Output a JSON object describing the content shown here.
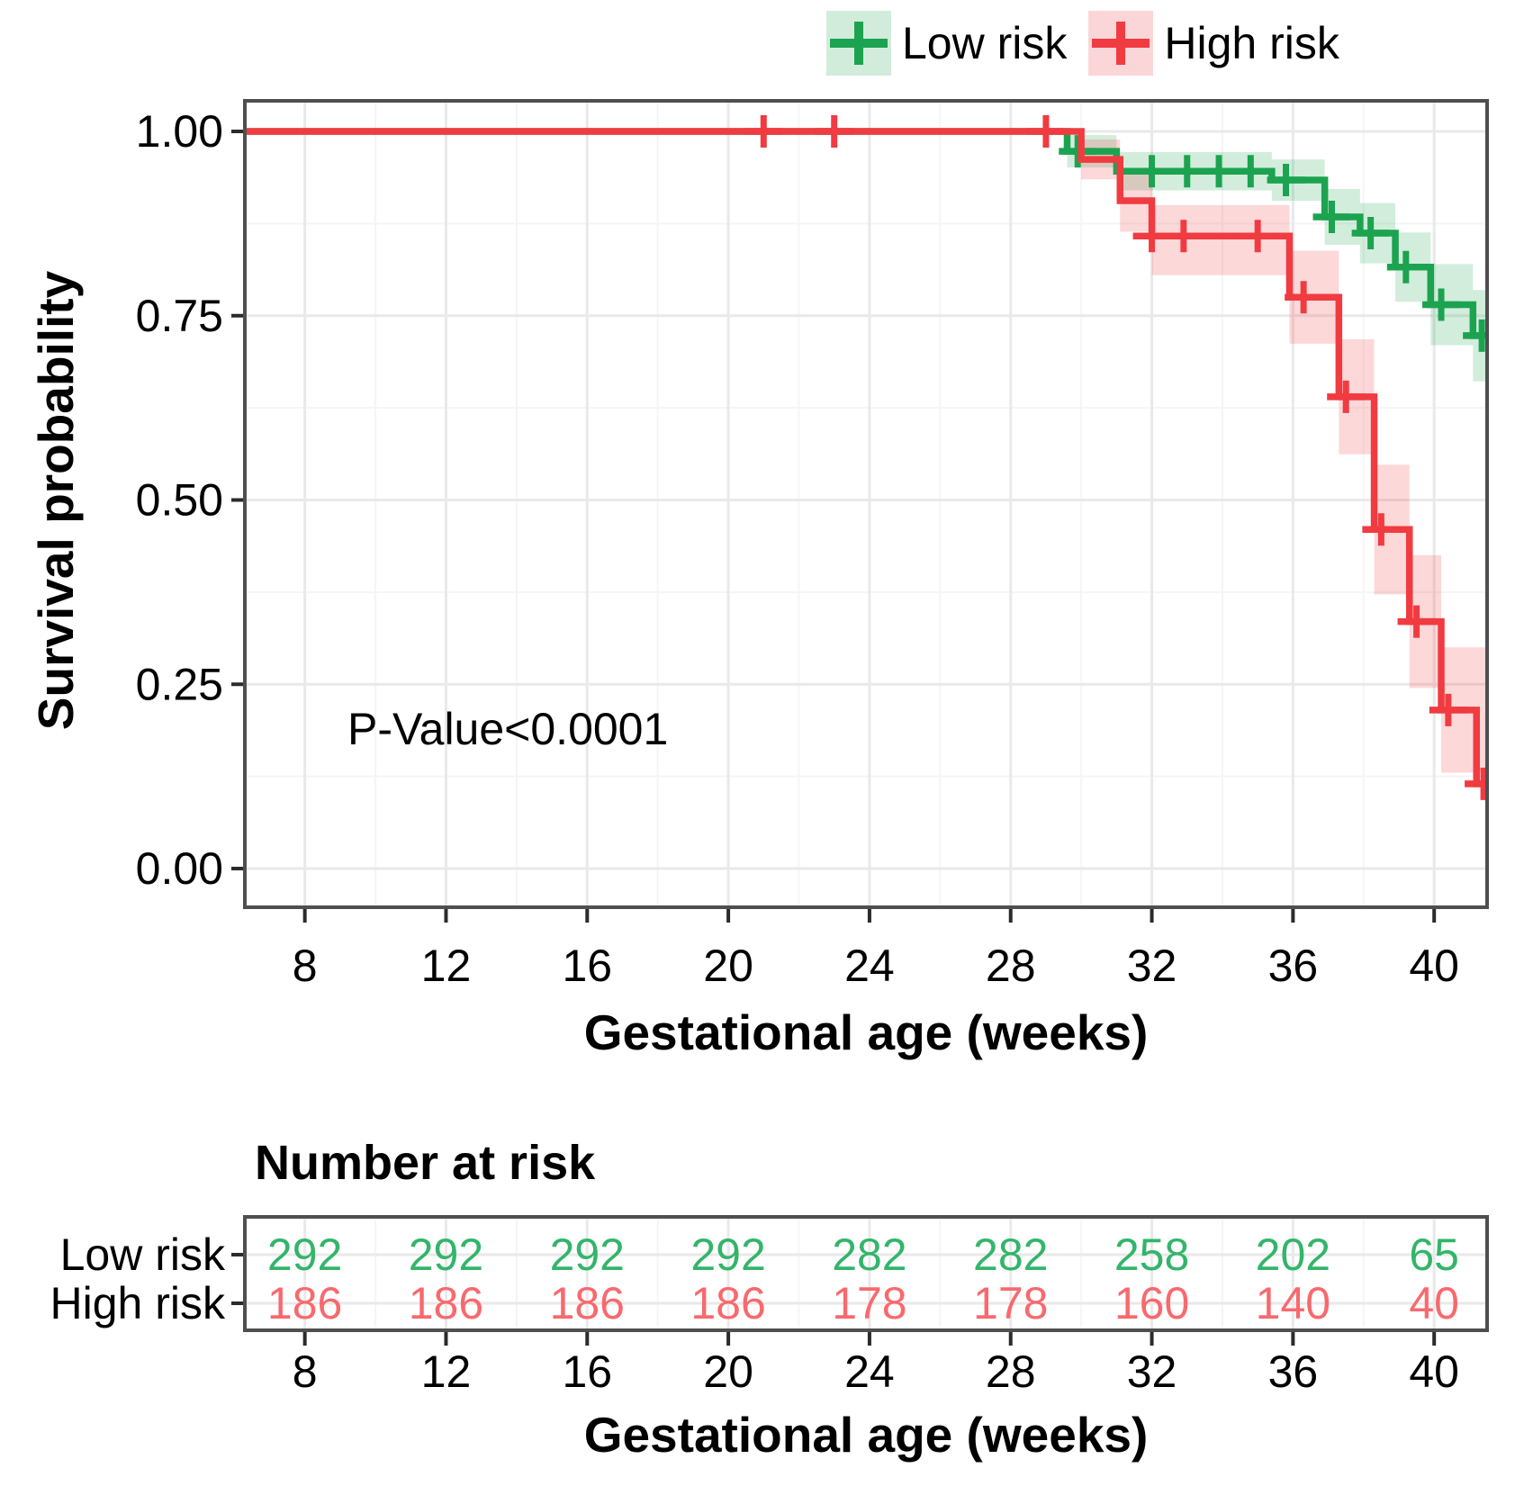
{
  "figure": {
    "background": "#ffffff",
    "legend": {
      "items": [
        {
          "label": "Low risk",
          "color": "#1CA350",
          "fill": "#D2ECDB"
        },
        {
          "label": "High risk",
          "color": "#F03B41",
          "fill": "#FBD6D8"
        }
      ]
    },
    "annotation": {
      "text": "P-Value<0.0001",
      "week": 9.2,
      "survival": 0.19
    }
  },
  "chart_data": [
    {
      "type": "line",
      "subtype": "kaplan-meier-step",
      "title": "",
      "xlabel": "Gestational age (weeks)",
      "ylabel": "Survival probability",
      "xlim": [
        6.3,
        41.5
      ],
      "ylim": [
        -0.05,
        1.04
      ],
      "xticks": [
        8,
        12,
        16,
        20,
        24,
        28,
        32,
        36,
        40
      ],
      "yticks": [
        1.0,
        0.75,
        0.5,
        0.25,
        0.0
      ],
      "ytick_labels": [
        "1.00",
        "0.75",
        "0.50",
        "0.25",
        "0.00"
      ],
      "grid": "major+minor",
      "legend_position": "top-right",
      "series": [
        {
          "name": "Low risk",
          "color": "#1CA350",
          "band_opacity": 0.2,
          "steps": [
            [
              6.3,
              1.0
            ],
            [
              29.6,
              0.973
            ],
            [
              31.0,
              0.946
            ],
            [
              35.4,
              0.934
            ],
            [
              36.9,
              0.884
            ],
            [
              37.9,
              0.862
            ],
            [
              38.9,
              0.816
            ],
            [
              39.9,
              0.765
            ],
            [
              41.1,
              0.723
            ],
            [
              41.5,
              0.723
            ]
          ],
          "censors": [
            [
              29.9,
              0.973
            ],
            [
              32.0,
              0.946
            ],
            [
              33.0,
              0.946
            ],
            [
              33.9,
              0.946
            ],
            [
              34.8,
              0.946
            ],
            [
              35.8,
              0.934
            ],
            [
              37.1,
              0.884
            ],
            [
              38.2,
              0.862
            ],
            [
              39.2,
              0.816
            ],
            [
              40.2,
              0.765
            ],
            [
              41.35,
              0.723
            ]
          ],
          "band": [
            [
              29.6,
              0.995,
              0.951
            ],
            [
              31.0,
              0.972,
              0.92
            ],
            [
              35.4,
              0.962,
              0.906
            ],
            [
              36.9,
              0.922,
              0.846
            ],
            [
              37.9,
              0.903,
              0.821
            ],
            [
              38.9,
              0.863,
              0.769
            ],
            [
              39.9,
              0.82,
              0.71
            ],
            [
              41.1,
              0.785,
              0.661
            ],
            [
              41.5,
              0.785,
              0.661
            ]
          ]
        },
        {
          "name": "High risk",
          "color": "#F03B41",
          "band_opacity": 0.2,
          "steps": [
            [
              6.3,
              1.0
            ],
            [
              30.0,
              0.962
            ],
            [
              31.1,
              0.906
            ],
            [
              32.0,
              0.858
            ],
            [
              35.9,
              0.775
            ],
            [
              37.3,
              0.64
            ],
            [
              38.3,
              0.46
            ],
            [
              39.3,
              0.335
            ],
            [
              40.2,
              0.215
            ],
            [
              41.2,
              0.115
            ],
            [
              41.45,
              0.115
            ]
          ],
          "censors": [
            [
              21.0,
              1.0
            ],
            [
              23.0,
              1.0
            ],
            [
              29.0,
              1.0
            ],
            [
              32.0,
              0.858
            ],
            [
              32.9,
              0.858
            ],
            [
              35.0,
              0.858
            ],
            [
              36.3,
              0.775
            ],
            [
              37.5,
              0.64
            ],
            [
              38.5,
              0.46
            ],
            [
              39.5,
              0.335
            ],
            [
              40.4,
              0.215
            ],
            [
              41.4,
              0.115
            ]
          ],
          "band": [
            [
              30.0,
              0.989,
              0.935
            ],
            [
              31.1,
              0.948,
              0.864
            ],
            [
              32.0,
              0.9,
              0.805
            ],
            [
              35.9,
              0.838,
              0.712
            ],
            [
              37.3,
              0.718,
              0.562
            ],
            [
              38.3,
              0.548,
              0.372
            ],
            [
              39.3,
              0.425,
              0.245
            ],
            [
              40.2,
              0.3,
              0.13
            ],
            [
              41.45,
              0.195,
              0.035
            ]
          ]
        }
      ],
      "annotations": [
        {
          "text": "P-Value<0.0001",
          "x": 9.2,
          "y": 0.19
        }
      ]
    },
    {
      "type": "table",
      "title": "Number at risk",
      "xlabel": "Gestational age (weeks)",
      "xticks": [
        8,
        12,
        16,
        20,
        24,
        28,
        32,
        36,
        40
      ],
      "rows": [
        {
          "label": "Low risk",
          "color": "#33B56A",
          "values": [
            292,
            292,
            292,
            292,
            282,
            282,
            258,
            202,
            65
          ]
        },
        {
          "label": "High risk",
          "color": "#F8696E",
          "values": [
            186,
            186,
            186,
            186,
            178,
            178,
            160,
            140,
            40
          ]
        }
      ]
    }
  ]
}
